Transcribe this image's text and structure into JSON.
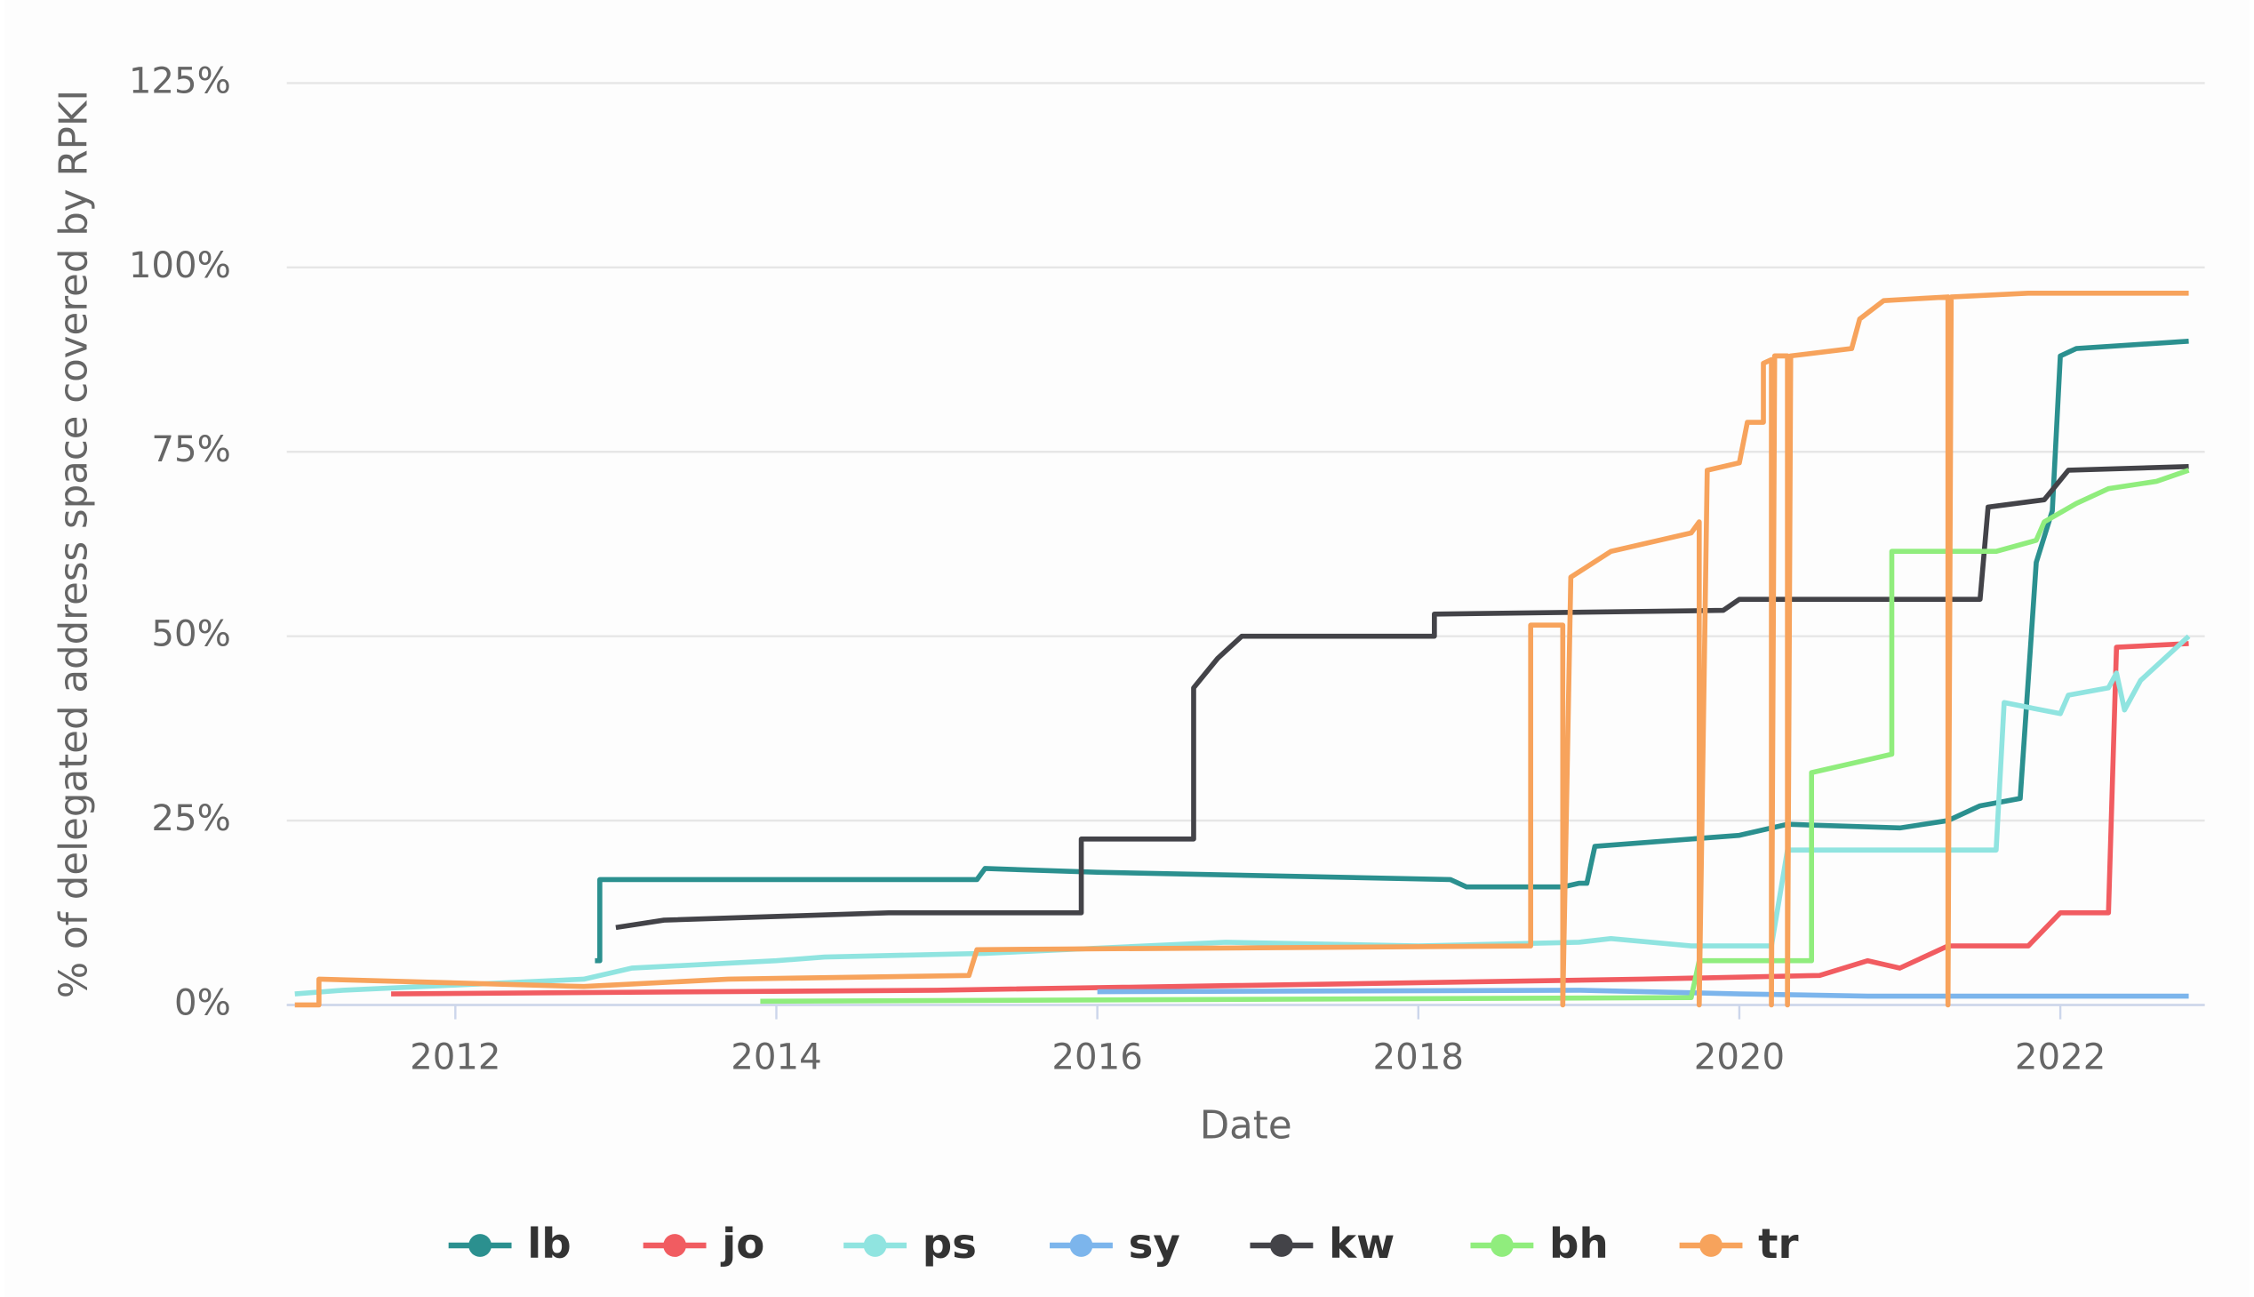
{
  "chart_data": {
    "type": "line",
    "y_label": "% of delegated address space covered by RPKI",
    "x_label": "Date",
    "xlim": [
      2010.95,
      2022.9
    ],
    "xticks": [
      2012,
      2014,
      2016,
      2018,
      2020,
      2022
    ],
    "ylim": [
      0,
      125
    ],
    "yticks": [
      {
        "value": 0,
        "label": "0%"
      },
      {
        "value": 25,
        "label": "25%"
      },
      {
        "value": 50,
        "label": "50%"
      },
      {
        "value": 75,
        "label": "75%"
      },
      {
        "value": 100,
        "label": "100%"
      },
      {
        "value": 125,
        "label": "125%"
      }
    ],
    "grid": true,
    "legend": "bottom",
    "series": [
      {
        "name": "lb",
        "color": "#2b908f",
        "x": [
          2012.87,
          2012.9,
          2012.9,
          2015.25,
          2015.3,
          2016.0,
          2018.2,
          2018.3,
          2018.9,
          2019.0,
          2019.05,
          2019.1,
          2020.0,
          2020.3,
          2021.0,
          2021.3,
          2021.5,
          2021.75,
          2021.85,
          2021.95,
          2022.0,
          2022.1,
          2022.8
        ],
        "values": [
          6,
          6,
          17,
          17,
          18.5,
          18,
          17,
          16,
          16,
          16.5,
          16.5,
          21.5,
          23,
          24.5,
          24,
          25,
          27,
          28,
          60,
          67,
          88,
          89,
          90
        ]
      },
      {
        "name": "jo",
        "color": "#f15c61",
        "x": [
          2011.6,
          2015.0,
          2019.4,
          2020.5,
          2020.8,
          2021.0,
          2021.3,
          2021.8,
          2022.0,
          2022.3,
          2022.35,
          2022.8
        ],
        "values": [
          1.5,
          2,
          3.5,
          4,
          6,
          5,
          8,
          8,
          12.5,
          12.5,
          48.5,
          49
        ]
      },
      {
        "name": "ps",
        "color": "#90e4e0",
        "x": [
          2011.0,
          2011.3,
          2012.8,
          2013.1,
          2014.0,
          2014.3,
          2015.3,
          2016.3,
          2016.8,
          2018.0,
          2019.0,
          2019.2,
          2019.7,
          2020.2,
          2020.3,
          2021.6,
          2021.65,
          2022.0,
          2022.05,
          2022.3,
          2022.35,
          2022.4,
          2022.5,
          2022.8
        ],
        "values": [
          1.5,
          2,
          3.5,
          5,
          6,
          6.5,
          7,
          8,
          8.5,
          8,
          8.5,
          9,
          8,
          8,
          21,
          21,
          41,
          39.5,
          42,
          43,
          45,
          40,
          44,
          50
        ]
      },
      {
        "name": "sy",
        "color": "#7cb5ec",
        "x": [
          2016.0,
          2019.0,
          2020.0,
          2020.8,
          2022.8
        ],
        "values": [
          1.8,
          2,
          1.5,
          1.2,
          1.2
        ]
      },
      {
        "name": "kw",
        "color": "#434348",
        "x": [
          2013.0,
          2013.3,
          2014.7,
          2015.9,
          2015.9,
          2016.6,
          2016.6,
          2016.75,
          2016.9,
          2018.1,
          2018.1,
          2019.9,
          2020.0,
          2021.5,
          2021.55,
          2021.9,
          2022.05,
          2022.8
        ],
        "values": [
          10.5,
          11.5,
          12.5,
          12.5,
          22.5,
          22.5,
          43,
          47,
          50,
          50,
          53,
          53.5,
          55,
          55,
          67.5,
          68.5,
          72.5,
          73
        ]
      },
      {
        "name": "bh",
        "color": "#90ed7d",
        "x": [
          2013.9,
          2019.7,
          2019.75,
          2020.45,
          2020.45,
          2020.75,
          2020.95,
          2020.95,
          2021.6,
          2021.85,
          2021.9,
          2022.1,
          2022.3,
          2022.6,
          2022.8
        ],
        "values": [
          0.5,
          1,
          6,
          6,
          31.5,
          33,
          34,
          61.5,
          61.5,
          63,
          65.5,
          68,
          70,
          71,
          72.5
        ]
      },
      {
        "name": "tr",
        "color": "#f7a35c",
        "x": [
          2011.0,
          2011.15,
          2011.15,
          2012.8,
          2013.7,
          2015.2,
          2015.25,
          2018.7,
          2018.7,
          2018.9,
          2018.9,
          2018.95,
          2019.2,
          2019.7,
          2019.75,
          2019.75,
          2019.8,
          2020.0,
          2020.05,
          2020.15,
          2020.15,
          2020.2,
          2020.2,
          2020.22,
          2020.3,
          2020.3,
          2020.32,
          2020.7,
          2020.75,
          2020.9,
          2021.3,
          2021.3,
          2021.32,
          2021.8,
          2022.8
        ],
        "values": [
          0,
          0,
          3.5,
          2.5,
          3.5,
          4,
          7.5,
          8,
          51.5,
          51.5,
          0,
          58,
          61.5,
          64,
          65.5,
          0,
          72.5,
          73.5,
          79,
          79,
          87,
          87.5,
          0,
          88,
          88,
          0,
          88,
          89,
          93,
          95.5,
          96,
          0,
          96,
          96.5,
          96.5
        ]
      }
    ]
  }
}
